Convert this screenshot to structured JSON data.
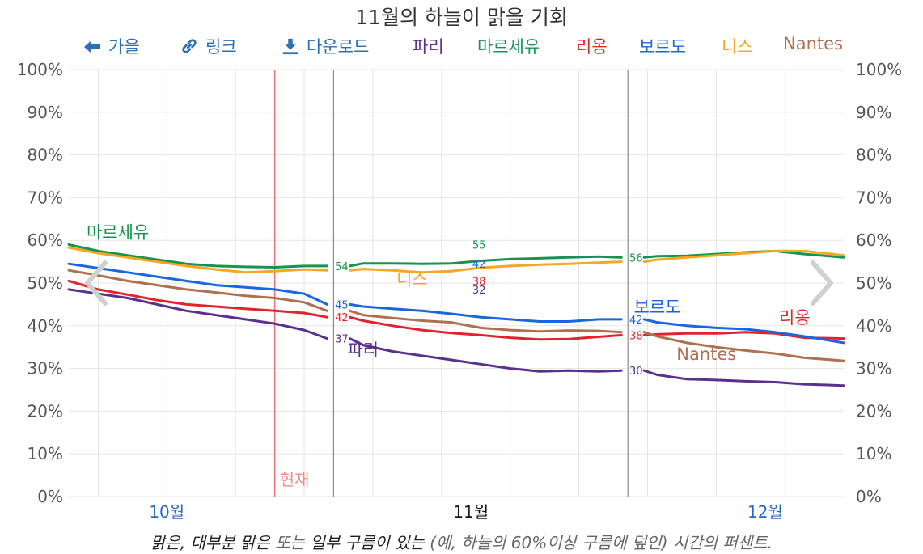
{
  "title": "11월의 하늘이 맑을 기회",
  "toolbar": {
    "back_label": "가을",
    "link_label": "링크",
    "download_label": "다운로드"
  },
  "caption": {
    "part1": "맑은, 대부분 맑은",
    "part2": " 또는 ",
    "part3": "일부 구름이 있는",
    "part4": " (예, 하늘의 60%이상 구름에 덮인) 시간의 퍼센트."
  },
  "colors": {
    "paris": "#5b2f8e",
    "marseille": "#17934f",
    "lyon": "#e1242b",
    "bordeaux": "#1a66e0",
    "nice": "#f5a623",
    "nantes": "#b07050",
    "now_line": "#f07070",
    "link_blue": "#2c6fb5"
  },
  "chart_data": {
    "type": "line",
    "title": "11월의 하늘이 맑을 기회",
    "x_unit": "day-of-year",
    "xlim": [
      278,
      357
    ],
    "ylim": [
      0,
      100
    ],
    "y_ticks": [
      "0%",
      "10%",
      "20%",
      "30%",
      "40%",
      "50%",
      "60%",
      "70%",
      "80%",
      "90%",
      "100%"
    ],
    "month_labels": [
      {
        "label": "10월",
        "day": 288
      },
      {
        "label": "11월",
        "day": 319
      },
      {
        "label": "12월",
        "day": 349
      }
    ],
    "now_marker": {
      "label": "현재",
      "day": 299
    },
    "month_bounds": [
      305,
      335
    ],
    "grid": true,
    "legend": "top",
    "series": [
      {
        "key": "paris",
        "name": "파리",
        "points": [
          [
            278,
            48.5
          ],
          [
            281,
            47.5
          ],
          [
            284,
            46.5
          ],
          [
            287,
            45
          ],
          [
            290,
            43.5
          ],
          [
            293,
            42.5
          ],
          [
            296,
            41.5
          ],
          [
            299,
            40.5
          ],
          [
            302,
            39
          ],
          [
            305,
            37
          ],
          [
            308,
            35.5
          ],
          [
            311,
            34
          ],
          [
            314,
            33
          ],
          [
            317,
            32
          ],
          [
            320,
            31
          ],
          [
            323,
            30
          ],
          [
            326,
            29.3
          ],
          [
            329,
            29.5
          ],
          [
            332,
            29.3
          ],
          [
            335,
            29.5
          ],
          [
            338,
            28.5
          ],
          [
            341,
            27.5
          ],
          [
            344,
            27.3
          ],
          [
            347,
            27
          ],
          [
            350,
            26.8
          ],
          [
            353,
            26.3
          ],
          [
            357,
            26
          ]
        ],
        "segment_labels": [
          {
            "day": 305,
            "value": "37"
          },
          {
            "day": 319,
            "value": "32"
          },
          {
            "day": 335,
            "value": "30"
          }
        ],
        "plot_label": {
          "text": "파리",
          "day": 308,
          "value": 33
        }
      },
      {
        "key": "marseille",
        "name": "마르세유",
        "points": [
          [
            278,
            59
          ],
          [
            281,
            57.5
          ],
          [
            284,
            56.5
          ],
          [
            287,
            55.5
          ],
          [
            290,
            54.5
          ],
          [
            293,
            54
          ],
          [
            296,
            53.8
          ],
          [
            299,
            53.7
          ],
          [
            302,
            54
          ],
          [
            305,
            54
          ],
          [
            308,
            54.6
          ],
          [
            311,
            54.6
          ],
          [
            314,
            54.5
          ],
          [
            317,
            54.6
          ],
          [
            320,
            55.2
          ],
          [
            323,
            55.6
          ],
          [
            326,
            55.8
          ],
          [
            329,
            56
          ],
          [
            332,
            56.2
          ],
          [
            335,
            56
          ],
          [
            338,
            56.3
          ],
          [
            341,
            56.4
          ],
          [
            344,
            56.8
          ],
          [
            347,
            57.2
          ],
          [
            350,
            57.5
          ],
          [
            353,
            56.8
          ],
          [
            357,
            56
          ]
        ],
        "segment_labels": [
          {
            "day": 305,
            "value": "54"
          },
          {
            "day": 319,
            "value": "55"
          },
          {
            "day": 335,
            "value": "56"
          }
        ],
        "plot_label": {
          "text": "마르세유",
          "day": 283,
          "value": 60.5
        }
      },
      {
        "key": "lyon",
        "name": "리옹",
        "points": [
          [
            278,
            50.5
          ],
          [
            281,
            48.5
          ],
          [
            284,
            47.3
          ],
          [
            287,
            46
          ],
          [
            290,
            45
          ],
          [
            293,
            44.5
          ],
          [
            296,
            44
          ],
          [
            299,
            43.5
          ],
          [
            302,
            43
          ],
          [
            305,
            42
          ],
          [
            308,
            41.2
          ],
          [
            311,
            40
          ],
          [
            314,
            39
          ],
          [
            317,
            38.3
          ],
          [
            320,
            37.8
          ],
          [
            323,
            37.2
          ],
          [
            326,
            36.8
          ],
          [
            329,
            36.9
          ],
          [
            332,
            37.4
          ],
          [
            335,
            37.8
          ],
          [
            338,
            38
          ],
          [
            341,
            38.2
          ],
          [
            344,
            38.2
          ],
          [
            347,
            38.5
          ],
          [
            350,
            38.2
          ],
          [
            353,
            37.2
          ],
          [
            357,
            37
          ]
        ],
        "segment_labels": [
          {
            "day": 305,
            "value": "42"
          },
          {
            "day": 319,
            "value": "38"
          },
          {
            "day": 335,
            "value": "38"
          }
        ],
        "plot_label": {
          "text": "리옹",
          "day": 352,
          "value": 40.5
        }
      },
      {
        "key": "bordeaux",
        "name": "보르도",
        "points": [
          [
            278,
            54.5
          ],
          [
            281,
            53.5
          ],
          [
            284,
            52.5
          ],
          [
            287,
            51.5
          ],
          [
            290,
            50.5
          ],
          [
            293,
            49.5
          ],
          [
            296,
            49
          ],
          [
            299,
            48.5
          ],
          [
            302,
            47.5
          ],
          [
            305,
            45
          ],
          [
            308,
            44.5
          ],
          [
            311,
            44
          ],
          [
            314,
            43.5
          ],
          [
            317,
            42.8
          ],
          [
            320,
            42
          ],
          [
            323,
            41.5
          ],
          [
            326,
            41
          ],
          [
            329,
            41
          ],
          [
            332,
            41.5
          ],
          [
            335,
            41.5
          ],
          [
            338,
            40.8
          ],
          [
            341,
            40
          ],
          [
            344,
            39.5
          ],
          [
            347,
            39.2
          ],
          [
            350,
            38.5
          ],
          [
            353,
            37.5
          ],
          [
            357,
            36
          ]
        ],
        "segment_labels": [
          {
            "day": 305,
            "value": "45"
          },
          {
            "day": 319,
            "value": "42"
          },
          {
            "day": 335,
            "value": "42"
          }
        ],
        "plot_label": {
          "text": "보르도",
          "day": 338,
          "value": 43
        }
      },
      {
        "key": "nice",
        "name": "니스",
        "points": [
          [
            278,
            58.3
          ],
          [
            281,
            57
          ],
          [
            284,
            56
          ],
          [
            287,
            55
          ],
          [
            290,
            54
          ],
          [
            293,
            53.2
          ],
          [
            296,
            52.5
          ],
          [
            299,
            52.8
          ],
          [
            302,
            53.2
          ],
          [
            305,
            53
          ],
          [
            308,
            53.3
          ],
          [
            311,
            53
          ],
          [
            314,
            52.5
          ],
          [
            317,
            52.8
          ],
          [
            320,
            53.6
          ],
          [
            323,
            54
          ],
          [
            326,
            54.3
          ],
          [
            329,
            54.5
          ],
          [
            332,
            54.8
          ],
          [
            335,
            55
          ],
          [
            338,
            55.5
          ],
          [
            341,
            56
          ],
          [
            344,
            56.5
          ],
          [
            347,
            57
          ],
          [
            350,
            57.5
          ],
          [
            353,
            57.5
          ],
          [
            357,
            56.5
          ]
        ],
        "segment_labels": [],
        "plot_label": {
          "text": "니스",
          "day": 313,
          "value": 49.5
        }
      },
      {
        "key": "nantes",
        "name": "Nantes",
        "points": [
          [
            278,
            53
          ],
          [
            281,
            51.8
          ],
          [
            284,
            50.5
          ],
          [
            287,
            49.5
          ],
          [
            290,
            48.5
          ],
          [
            293,
            47.8
          ],
          [
            296,
            47
          ],
          [
            299,
            46.5
          ],
          [
            302,
            45.5
          ],
          [
            305,
            43.5
          ],
          [
            308,
            42.5
          ],
          [
            311,
            41.8
          ],
          [
            314,
            41.2
          ],
          [
            317,
            40.8
          ],
          [
            320,
            39.5
          ],
          [
            323,
            39
          ],
          [
            326,
            38.7
          ],
          [
            329,
            38.9
          ],
          [
            332,
            38.8
          ],
          [
            335,
            38.5
          ],
          [
            338,
            37.5
          ],
          [
            341,
            36
          ],
          [
            344,
            35
          ],
          [
            347,
            34.2
          ],
          [
            350,
            33.5
          ],
          [
            353,
            32.5
          ],
          [
            357,
            31.8
          ]
        ],
        "segment_labels": [],
        "plot_label": {
          "text": "Nantes",
          "day": 343,
          "value": 32
        }
      }
    ]
  }
}
